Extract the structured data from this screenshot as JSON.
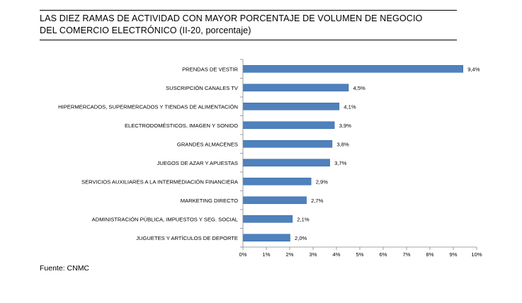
{
  "title": {
    "line1": "LAS DIEZ RAMAS DE ACTIVIDAD CON MAYOR PORCENTAJE DE VOLUMEN DE NEGOCIO",
    "line2": "DEL COMERCIO ELECTRÓNICO (II-20, porcentaje)"
  },
  "source": "Fuente: CNMC",
  "chart_data": {
    "type": "bar",
    "orientation": "horizontal",
    "title": "LAS DIEZ RAMAS DE ACTIVIDAD CON MAYOR PORCENTAJE DE VOLUMEN DE NEGOCIO DEL COMERCIO ELECTRÓNICO (II-20, porcentaje)",
    "categories": [
      "PRENDAS DE VESTIR",
      "SUSCRIPCIÓN CANALES TV",
      "HIPERMERCADOS, SUPERMERCADOS Y TIENDAS DE ALIMENTACIÓN",
      "ELECTRODOMÉSTICOS,  IMAGEN Y SONIDO",
      "GRANDES ALMACENES",
      "JUEGOS DE AZAR Y APUESTAS",
      "SERVICIOS AUXILIARES A LA INTERMEDIACIÓN FINANCIERA",
      "MARKETING DIRECTO",
      "ADMINISTRACIÓN PÚBLICA, IMPUESTOS Y SEG. SOCIAL",
      "JUGUETES Y ARTÍCULOS DE DEPORTE"
    ],
    "values": [
      9.4,
      4.5,
      4.1,
      3.9,
      3.8,
      3.7,
      2.9,
      2.7,
      2.1,
      2.0
    ],
    "value_labels": [
      "9,4%",
      "4,5%",
      "4,1%",
      "3,9%",
      "3,8%",
      "3,7%",
      "2,9%",
      "2,7%",
      "2,1%",
      "2,0%"
    ],
    "xlim": [
      0,
      10
    ],
    "x_ticks": [
      0,
      1,
      2,
      3,
      4,
      5,
      6,
      7,
      8,
      9,
      10
    ],
    "x_tick_labels": [
      "0%",
      "1%",
      "2%",
      "3%",
      "4%",
      "5%",
      "6%",
      "7%",
      "8%",
      "9%",
      "10%"
    ],
    "xlabel": "",
    "ylabel": "",
    "grid": false,
    "legend": "none",
    "bar_color": "#4f81bd",
    "bar_edge_color": "#3a6ea5"
  }
}
